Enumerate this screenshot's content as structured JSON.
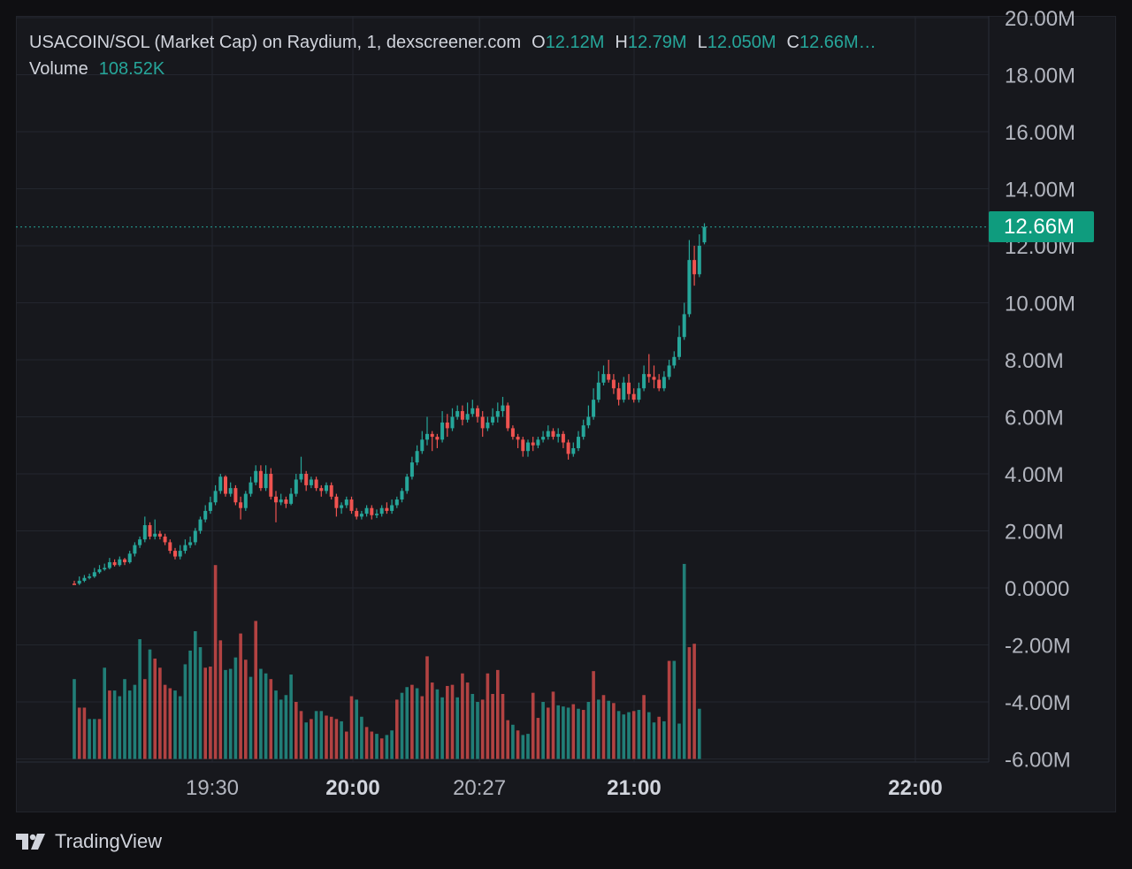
{
  "legend": {
    "title": "USACOIN/SOL (Market Cap) on Raydium, 1, dexscreener.com",
    "o_label": "O",
    "o_value": "12.12M",
    "h_label": "H",
    "h_value": "12.79M",
    "l_label": "L",
    "l_value": "12.050M",
    "c_label": "C",
    "c_value": "12.66M…",
    "volume_label": "Volume",
    "volume_value": "108.52K"
  },
  "price_badge": "12.66M",
  "brand": {
    "icon": "tradingview-logo-icon",
    "text": "TradingView"
  },
  "colors": {
    "up": "#26a69a",
    "down": "#ef5350",
    "badge": "#0f9c7e",
    "background": "#17181d"
  },
  "chart_data": {
    "type": "candlestick",
    "y_axis": {
      "tick_labels": [
        "20.00M",
        "18.00M",
        "16.00M",
        "14.00M",
        "12.00M",
        "10.00M",
        "8.00M",
        "6.00M",
        "4.00M",
        "2.00M",
        "0.0000",
        "-2.00M",
        "-4.00M",
        "-6.00M"
      ],
      "tick_values": [
        20,
        18,
        16,
        14,
        12,
        10,
        8,
        6,
        4,
        2,
        0,
        -2,
        -4,
        -6
      ],
      "unit": "M",
      "range": [
        -6,
        20
      ]
    },
    "x_axis": {
      "ticks": [
        {
          "label": "19:30",
          "minute": 0,
          "bold": false
        },
        {
          "label": "20:00",
          "minute": 30,
          "bold": true
        },
        {
          "label": "20:27",
          "minute": 57,
          "bold": false
        },
        {
          "label": "21:00",
          "minute": 90,
          "bold": true
        },
        {
          "label": "22:00",
          "minute": 150,
          "bold": true
        }
      ],
      "range_minutes": [
        -26,
        163
      ]
    },
    "last_price": 12.66,
    "volume_base": -6,
    "volume_scale": 40,
    "candles": [
      [
        0.15,
        0.1,
        0.25,
        0.15
      ],
      [
        0.15,
        0.25,
        0.4,
        0.1
      ],
      [
        0.25,
        0.35,
        0.45,
        0.2
      ],
      [
        0.35,
        0.4,
        0.5,
        0.3
      ],
      [
        0.4,
        0.55,
        0.7,
        0.35
      ],
      [
        0.55,
        0.65,
        0.8,
        0.5
      ],
      [
        0.65,
        0.7,
        0.85,
        0.6
      ],
      [
        0.7,
        0.9,
        1.05,
        0.65
      ],
      [
        0.9,
        0.8,
        1.0,
        0.75
      ],
      [
        0.8,
        1.0,
        1.1,
        0.75
      ],
      [
        1.0,
        0.9,
        1.05,
        0.8
      ],
      [
        0.9,
        1.2,
        1.3,
        0.85
      ],
      [
        1.2,
        1.5,
        1.6,
        1.1
      ],
      [
        1.5,
        1.7,
        1.8,
        1.4
      ],
      [
        1.7,
        2.2,
        2.5,
        1.6
      ],
      [
        2.2,
        1.8,
        2.3,
        1.7
      ],
      [
        1.8,
        1.9,
        2.4,
        1.7
      ],
      [
        1.9,
        1.8,
        2.0,
        1.7
      ],
      [
        1.8,
        1.6,
        1.9,
        1.5
      ],
      [
        1.6,
        1.3,
        1.7,
        1.2
      ],
      [
        1.3,
        1.1,
        1.4,
        1.0
      ],
      [
        1.1,
        1.3,
        1.5,
        1.0
      ],
      [
        1.3,
        1.5,
        1.7,
        1.2
      ],
      [
        1.5,
        1.6,
        1.8,
        1.4
      ],
      [
        1.6,
        2.0,
        2.1,
        1.5
      ],
      [
        2.0,
        2.4,
        2.5,
        1.9
      ],
      [
        2.4,
        2.7,
        2.9,
        2.3
      ],
      [
        2.7,
        3.0,
        3.2,
        2.6
      ],
      [
        3.0,
        3.4,
        3.6,
        2.9
      ],
      [
        3.4,
        3.9,
        4.0,
        3.3
      ],
      [
        3.9,
        3.3,
        3.95,
        3.2
      ],
      [
        3.3,
        3.5,
        3.7,
        3.2
      ],
      [
        3.5,
        3.0,
        3.6,
        2.9
      ],
      [
        3.0,
        2.8,
        3.2,
        2.4
      ],
      [
        2.8,
        3.3,
        3.4,
        2.7
      ],
      [
        3.3,
        3.7,
        3.9,
        3.2
      ],
      [
        3.7,
        4.1,
        4.3,
        3.6
      ],
      [
        4.1,
        3.5,
        4.3,
        3.4
      ],
      [
        3.5,
        4.0,
        4.3,
        3.4
      ],
      [
        4.0,
        3.2,
        4.2,
        3.1
      ],
      [
        3.2,
        3.0,
        3.4,
        2.3
      ],
      [
        3.0,
        3.1,
        3.3,
        2.9
      ],
      [
        3.1,
        2.95,
        3.2,
        2.8
      ],
      [
        2.95,
        3.3,
        3.5,
        2.9
      ],
      [
        3.3,
        3.8,
        4.0,
        3.2
      ],
      [
        3.8,
        4.0,
        4.6,
        3.7
      ],
      [
        4.0,
        3.6,
        4.1,
        3.4
      ],
      [
        3.6,
        3.8,
        3.9,
        3.5
      ],
      [
        3.8,
        3.5,
        3.9,
        3.4
      ],
      [
        3.5,
        3.4,
        3.6,
        3.2
      ],
      [
        3.4,
        3.6,
        3.7,
        3.3
      ],
      [
        3.6,
        3.2,
        3.7,
        3.1
      ],
      [
        3.2,
        2.8,
        3.3,
        2.5
      ],
      [
        2.8,
        2.9,
        3.0,
        2.6
      ],
      [
        2.9,
        3.1,
        3.2,
        2.8
      ],
      [
        3.1,
        2.7,
        3.2,
        2.6
      ],
      [
        2.7,
        2.5,
        2.8,
        2.4
      ],
      [
        2.5,
        2.6,
        2.7,
        2.4
      ],
      [
        2.6,
        2.8,
        2.9,
        2.5
      ],
      [
        2.8,
        2.55,
        2.9,
        2.4
      ],
      [
        2.55,
        2.6,
        2.75,
        2.45
      ],
      [
        2.6,
        2.8,
        2.9,
        2.5
      ],
      [
        2.8,
        2.7,
        3.0,
        2.6
      ],
      [
        2.7,
        2.9,
        3.1,
        2.6
      ],
      [
        2.9,
        3.1,
        3.2,
        2.8
      ],
      [
        3.1,
        3.4,
        3.5,
        3.0
      ],
      [
        3.4,
        3.9,
        4.0,
        3.3
      ],
      [
        3.9,
        4.4,
        4.6,
        3.8
      ],
      [
        4.4,
        4.8,
        5.0,
        4.3
      ],
      [
        4.8,
        5.2,
        5.5,
        4.7
      ],
      [
        5.2,
        5.4,
        6.0,
        5.0
      ],
      [
        5.4,
        5.3,
        5.5,
        4.8
      ],
      [
        5.3,
        5.2,
        5.4,
        4.9
      ],
      [
        5.2,
        5.8,
        6.2,
        5.1
      ],
      [
        5.8,
        5.6,
        6.1,
        5.3
      ],
      [
        5.6,
        6.0,
        6.3,
        5.5
      ],
      [
        6.0,
        6.2,
        6.4,
        5.9
      ],
      [
        6.2,
        5.9,
        6.4,
        5.7
      ],
      [
        5.9,
        6.1,
        6.5,
        5.8
      ],
      [
        6.1,
        6.3,
        6.6,
        6.0
      ],
      [
        6.3,
        6.0,
        6.4,
        5.8
      ],
      [
        6.0,
        5.6,
        6.2,
        5.3
      ],
      [
        5.6,
        5.8,
        6.0,
        5.5
      ],
      [
        5.8,
        6.0,
        6.3,
        5.7
      ],
      [
        6.0,
        6.2,
        6.5,
        5.8
      ],
      [
        6.2,
        6.4,
        6.7,
        6.0
      ],
      [
        6.4,
        5.6,
        6.5,
        5.5
      ],
      [
        5.6,
        5.3,
        5.7,
        5.2
      ],
      [
        5.3,
        5.2,
        5.4,
        4.9
      ],
      [
        5.2,
        4.8,
        5.3,
        4.6
      ],
      [
        4.8,
        5.1,
        5.2,
        4.6
      ],
      [
        5.1,
        5.0,
        5.3,
        4.8
      ],
      [
        5.0,
        5.2,
        5.3,
        4.9
      ],
      [
        5.2,
        5.3,
        5.5,
        5.1
      ],
      [
        5.3,
        5.5,
        5.7,
        5.2
      ],
      [
        5.5,
        5.3,
        5.6,
        5.2
      ],
      [
        5.3,
        5.4,
        5.6,
        5.1
      ],
      [
        5.4,
        5.1,
        5.5,
        4.9
      ],
      [
        5.1,
        4.7,
        5.2,
        4.5
      ],
      [
        4.7,
        4.9,
        5.1,
        4.6
      ],
      [
        4.9,
        5.3,
        5.5,
        4.8
      ],
      [
        5.3,
        5.7,
        5.9,
        5.2
      ],
      [
        5.7,
        6.0,
        6.4,
        5.6
      ],
      [
        6.0,
        6.6,
        7.0,
        5.9
      ],
      [
        6.6,
        7.2,
        7.6,
        6.5
      ],
      [
        7.2,
        7.5,
        7.8,
        7.1
      ],
      [
        7.5,
        7.3,
        8.0,
        7.2
      ],
      [
        7.3,
        7.0,
        7.5,
        6.8
      ],
      [
        7.0,
        6.6,
        7.2,
        6.4
      ],
      [
        6.6,
        7.2,
        7.4,
        6.5
      ],
      [
        7.2,
        6.8,
        7.5,
        6.6
      ],
      [
        6.8,
        6.6,
        7.0,
        6.5
      ],
      [
        6.6,
        7.0,
        7.2,
        6.5
      ],
      [
        7.0,
        7.5,
        7.8,
        6.9
      ],
      [
        7.5,
        7.4,
        8.2,
        7.2
      ],
      [
        7.4,
        7.3,
        7.8,
        7.0
      ],
      [
        7.3,
        7.0,
        7.5,
        6.9
      ],
      [
        7.0,
        7.4,
        7.6,
        6.9
      ],
      [
        7.4,
        7.8,
        8.0,
        7.3
      ],
      [
        7.8,
        8.1,
        8.3,
        7.7
      ],
      [
        8.1,
        8.8,
        9.2,
        8.0
      ],
      [
        8.8,
        9.6,
        10.0,
        8.7
      ],
      [
        9.6,
        11.5,
        12.2,
        9.5
      ],
      [
        11.5,
        11.0,
        12.0,
        10.6
      ],
      [
        11.0,
        12.0,
        12.4,
        10.9
      ],
      [
        12.12,
        12.66,
        12.79,
        12.05
      ]
    ],
    "volume": [
      [
        0.07,
        true
      ],
      [
        0.045,
        false
      ],
      [
        0.045,
        false
      ],
      [
        0.035,
        true
      ],
      [
        0.035,
        true
      ],
      [
        0.035,
        false
      ],
      [
        0.08,
        true
      ],
      [
        0.06,
        false
      ],
      [
        0.06,
        true
      ],
      [
        0.055,
        true
      ],
      [
        0.07,
        true
      ],
      [
        0.06,
        true
      ],
      [
        0.065,
        true
      ],
      [
        0.105,
        true
      ],
      [
        0.07,
        false
      ],
      [
        0.096,
        true
      ],
      [
        0.088,
        false
      ],
      [
        0.08,
        false
      ],
      [
        0.065,
        false
      ],
      [
        0.062,
        false
      ],
      [
        0.06,
        true
      ],
      [
        0.055,
        true
      ],
      [
        0.083,
        true
      ],
      [
        0.095,
        true
      ],
      [
        0.112,
        true
      ],
      [
        0.098,
        true
      ],
      [
        0.08,
        false
      ],
      [
        0.081,
        false
      ],
      [
        0.17,
        false
      ],
      [
        0.104,
        false
      ],
      [
        0.078,
        true
      ],
      [
        0.079,
        true
      ],
      [
        0.089,
        true
      ],
      [
        0.11,
        false
      ],
      [
        0.087,
        false
      ],
      [
        0.072,
        true
      ],
      [
        0.121,
        false
      ],
      [
        0.079,
        true
      ],
      [
        0.075,
        true
      ],
      [
        0.07,
        false
      ],
      [
        0.06,
        true
      ],
      [
        0.052,
        true
      ],
      [
        0.056,
        true
      ],
      [
        0.074,
        true
      ],
      [
        0.05,
        false
      ],
      [
        0.042,
        false
      ],
      [
        0.032,
        true
      ],
      [
        0.035,
        false
      ],
      [
        0.042,
        true
      ],
      [
        0.042,
        true
      ],
      [
        0.038,
        false
      ],
      [
        0.037,
        false
      ],
      [
        0.035,
        false
      ],
      [
        0.033,
        true
      ],
      [
        0.024,
        false
      ],
      [
        0.055,
        false
      ],
      [
        0.052,
        true
      ],
      [
        0.037,
        true
      ],
      [
        0.028,
        false
      ],
      [
        0.024,
        false
      ],
      [
        0.022,
        true
      ],
      [
        0.018,
        false
      ],
      [
        0.021,
        true
      ],
      [
        0.025,
        true
      ],
      [
        0.052,
        false
      ],
      [
        0.058,
        true
      ],
      [
        0.063,
        true
      ],
      [
        0.065,
        false
      ],
      [
        0.062,
        true
      ],
      [
        0.055,
        false
      ],
      [
        0.09,
        false
      ],
      [
        0.067,
        false
      ],
      [
        0.061,
        true
      ],
      [
        0.054,
        true
      ],
      [
        0.064,
        false
      ],
      [
        0.065,
        false
      ],
      [
        0.054,
        true
      ],
      [
        0.075,
        false
      ],
      [
        0.067,
        false
      ],
      [
        0.057,
        true
      ],
      [
        0.05,
        true
      ],
      [
        0.052,
        false
      ],
      [
        0.075,
        false
      ],
      [
        0.057,
        false
      ],
      [
        0.078,
        false
      ],
      [
        0.057,
        false
      ],
      [
        0.034,
        false
      ],
      [
        0.03,
        true
      ],
      [
        0.025,
        false
      ],
      [
        0.021,
        true
      ],
      [
        0.022,
        true
      ],
      [
        0.058,
        false
      ],
      [
        0.036,
        false
      ],
      [
        0.05,
        true
      ],
      [
        0.045,
        false
      ],
      [
        0.059,
        false
      ],
      [
        0.047,
        true
      ],
      [
        0.046,
        true
      ],
      [
        0.045,
        true
      ],
      [
        0.048,
        false
      ],
      [
        0.044,
        true
      ],
      [
        0.043,
        false
      ],
      [
        0.05,
        true
      ],
      [
        0.077,
        false
      ],
      [
        0.052,
        true
      ],
      [
        0.056,
        false
      ],
      [
        0.051,
        true
      ],
      [
        0.049,
        false
      ],
      [
        0.042,
        true
      ],
      [
        0.039,
        true
      ],
      [
        0.041,
        true
      ],
      [
        0.042,
        false
      ],
      [
        0.043,
        true
      ],
      [
        0.056,
        false
      ],
      [
        0.041,
        true
      ],
      [
        0.032,
        true
      ],
      [
        0.037,
        false
      ],
      [
        0.033,
        true
      ],
      [
        0.086,
        false
      ],
      [
        0.086,
        true
      ],
      [
        0.031,
        true
      ],
      [
        0.171,
        true
      ],
      [
        0.098,
        false
      ],
      [
        0.101,
        false
      ],
      [
        0.044,
        true
      ]
    ]
  }
}
